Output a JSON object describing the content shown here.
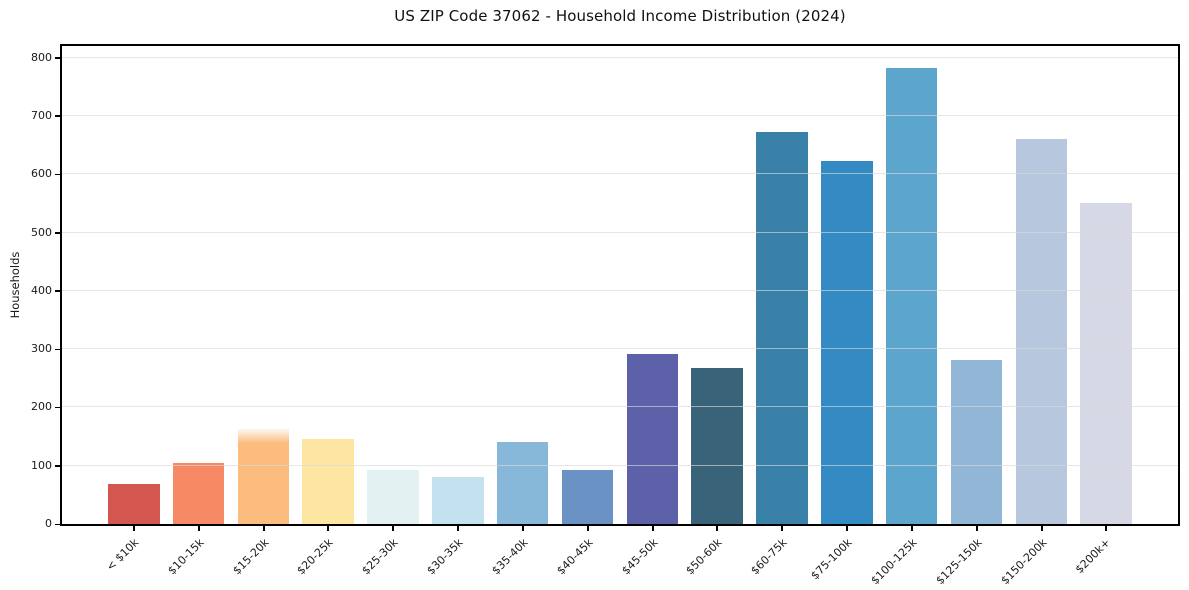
{
  "chart_data": {
    "type": "bar",
    "title": "US ZIP Code 37062 - Household Income Distribution (2024)",
    "xlabel": "",
    "ylabel": "Households",
    "categories": [
      "< $10k",
      "$10-15k",
      "$15-20k",
      "$20-25k",
      "$25-30k",
      "$30-35k",
      "$35-40k",
      "$40-45k",
      "$45-50k",
      "$50-60k",
      "$60-75k",
      "$75-100k",
      "$100-125k",
      "$125-150k",
      "$150-200k",
      "$200k+"
    ],
    "values": [
      68,
      104,
      163,
      145,
      92,
      81,
      141,
      93,
      291,
      267,
      673,
      623,
      782,
      281,
      661,
      551
    ],
    "bar_colors": [
      "#d4564e",
      "#f58a64",
      "#fbbc7e",
      "#fde5a2",
      "#e4f1f3",
      "#c3e1ee",
      "#87b7d9",
      "#6b92c5",
      "#5d61a9",
      "#386379",
      "#3a81aa",
      "#348bc3",
      "#5ca5cd",
      "#91b6d6",
      "#b7c7de",
      "#d6d8e6"
    ],
    "yticks": [
      0,
      100,
      200,
      300,
      400,
      500,
      600,
      700,
      800
    ],
    "ylim": [
      0,
      820
    ],
    "grid": "horizontal",
    "legend": "none",
    "background": "#ffffff",
    "spine_color": "#000000"
  }
}
